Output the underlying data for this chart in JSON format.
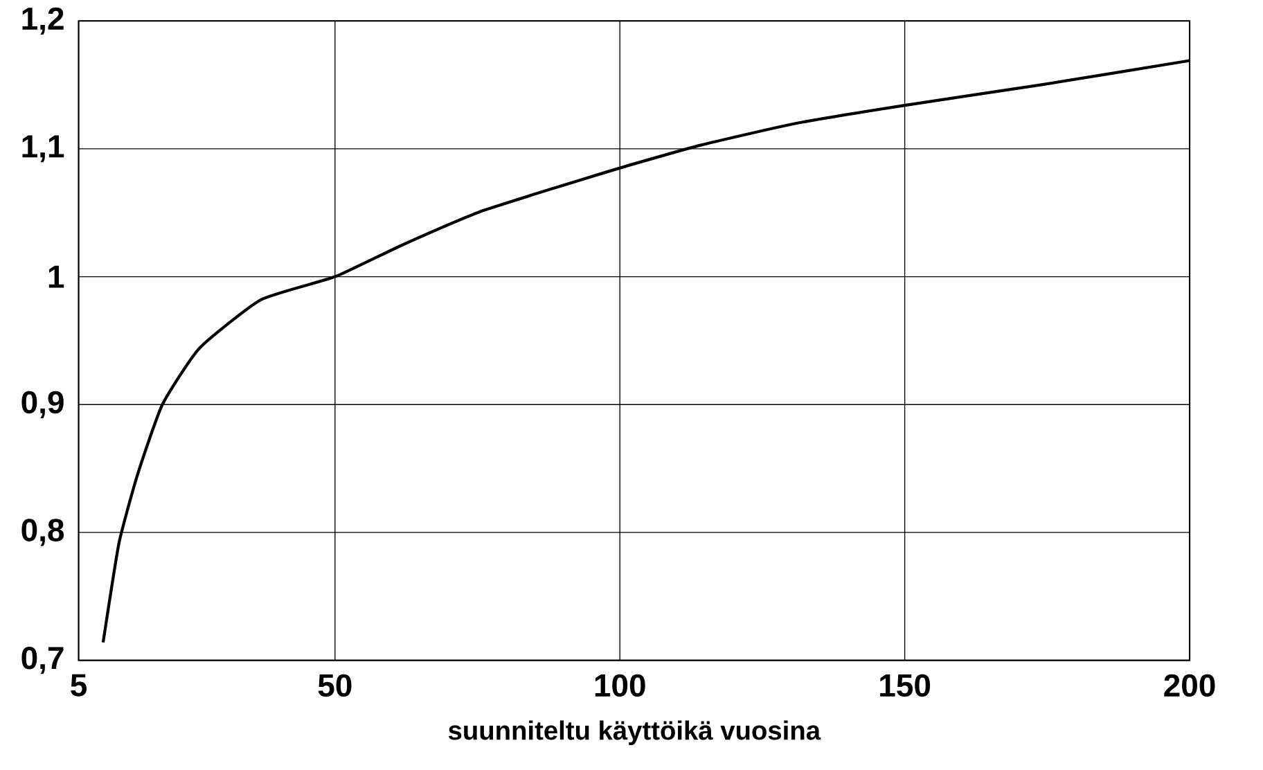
{
  "chart_data": {
    "type": "line",
    "xlabel": "suunniteltu käyttöikä vuosina",
    "x": [
      9.3,
      12.1,
      15.4,
      19.7,
      26.2,
      37,
      50,
      61.9,
      76.2,
      100,
      114.3,
      131,
      150,
      173.8,
      200
    ],
    "series": [
      {
        "color": "#000000",
        "values": [
          0.714,
          0.792,
          0.846,
          0.9,
          0.944,
          0.982,
          1.0,
          1.025,
          1.052,
          1.085,
          1.103,
          1.12,
          1.134,
          1.15,
          1.169
        ]
      }
    ],
    "xlim": [
      5,
      200
    ],
    "ylim": [
      0.7,
      1.2
    ],
    "xticks": [
      5,
      50,
      100,
      150,
      200
    ],
    "yticks": [
      {
        "value": 0.7,
        "label": "0,7"
      },
      {
        "value": 0.8,
        "label": "0,8"
      },
      {
        "value": 0.9,
        "label": "0,9"
      },
      1,
      {
        "value": 1.1,
        "label": "1,1"
      },
      {
        "value": 1.2,
        "label": "1,2"
      }
    ],
    "grid": true,
    "marker": "none",
    "line_style": "solid"
  }
}
